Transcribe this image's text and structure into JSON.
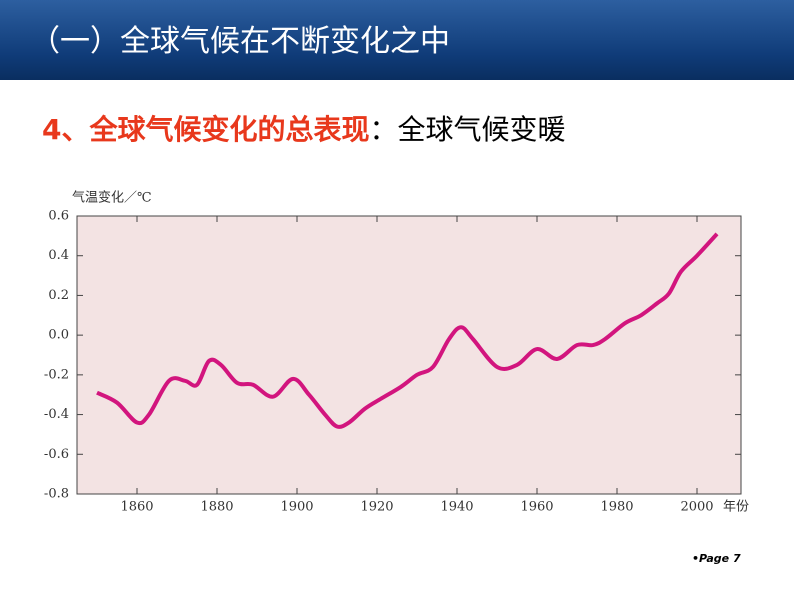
{
  "header": {
    "title": "（一）全球气候在不断变化之中"
  },
  "subtitle": {
    "lead": "4、全球气候变化的总表现",
    "rest": "：全球气候变暖"
  },
  "footer": "•Page 7",
  "chart_data": {
    "type": "line",
    "ylabel": "气温变化／℃",
    "xlabel": "年份",
    "x": [
      1850,
      1855,
      1860,
      1863,
      1868,
      1872,
      1875,
      1878,
      1881,
      1885,
      1889,
      1894,
      1899,
      1903,
      1907,
      1910,
      1913,
      1917,
      1921,
      1926,
      1930,
      1934,
      1938,
      1941,
      1944,
      1950,
      1955,
      1960,
      1965,
      1970,
      1974,
      1977,
      1982,
      1986,
      1990,
      1993,
      1996,
      2000,
      2005
    ],
    "series": [
      {
        "color": "#d2157e",
        "values": [
          -0.29,
          -0.34,
          -0.44,
          -0.4,
          -0.23,
          -0.23,
          -0.25,
          -0.13,
          -0.15,
          -0.24,
          -0.25,
          -0.31,
          -0.22,
          -0.3,
          -0.4,
          -0.46,
          -0.44,
          -0.37,
          -0.32,
          -0.26,
          -0.2,
          -0.16,
          -0.02,
          0.04,
          -0.02,
          -0.16,
          -0.15,
          -0.07,
          -0.12,
          -0.05,
          -0.05,
          -0.02,
          0.06,
          0.1,
          0.16,
          0.21,
          0.32,
          0.4,
          0.51
        ]
      }
    ],
    "xlim": [
      1845,
      2011
    ],
    "ylim": [
      -0.8,
      0.6
    ],
    "xticks": [
      1860,
      1880,
      1900,
      1920,
      1940,
      1960,
      1980,
      2000
    ],
    "yticks": [
      0.6,
      0.4,
      0.2,
      {
        "value": 0,
        "label": "0.0"
      },
      -0.2,
      -0.4,
      -0.6,
      -0.8
    ],
    "background": "#f3e3e3"
  }
}
